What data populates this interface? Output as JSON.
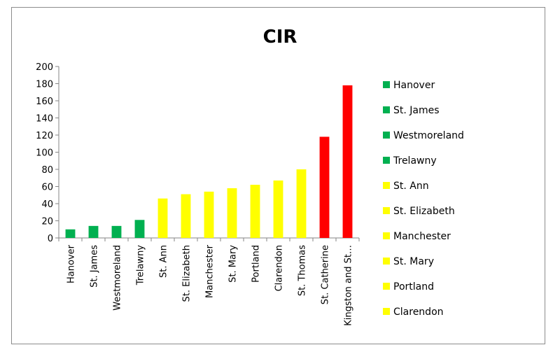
{
  "chart_data": {
    "type": "bar",
    "title": "CIR",
    "xlabel": "",
    "ylabel": "",
    "ylim": [
      0,
      200
    ],
    "yticks": [
      0,
      20,
      40,
      60,
      80,
      100,
      120,
      140,
      160,
      180,
      200
    ],
    "grid": false,
    "legend_position": "right",
    "categories": [
      "Hanover",
      "St. James",
      "Westmoreland",
      "Trelawny",
      "St. Ann",
      "St. Elizabeth",
      "Manchester",
      "St. Mary",
      "Portland",
      "Clarendon",
      "St. Thomas",
      "St. Catherine",
      "Kingston and St…"
    ],
    "values": [
      10,
      14,
      14,
      21,
      46,
      51,
      54,
      58,
      62,
      67,
      80,
      118,
      178
    ],
    "colors": [
      "#00b050",
      "#00b050",
      "#00b050",
      "#00b050",
      "#ffff00",
      "#ffff00",
      "#ffff00",
      "#ffff00",
      "#ffff00",
      "#ffff00",
      "#ffff00",
      "#ff0000",
      "#ff0000"
    ],
    "legend": [
      {
        "label": "Hanover",
        "color": "#00b050"
      },
      {
        "label": "St. James",
        "color": "#00b050"
      },
      {
        "label": "Westmoreland",
        "color": "#00b050"
      },
      {
        "label": "Trelawny",
        "color": "#00b050"
      },
      {
        "label": "St. Ann",
        "color": "#ffff00"
      },
      {
        "label": "St. Elizabeth",
        "color": "#ffff00"
      },
      {
        "label": "Manchester",
        "color": "#ffff00"
      },
      {
        "label": "St. Mary",
        "color": "#ffff00"
      },
      {
        "label": "Portland",
        "color": "#ffff00"
      },
      {
        "label": "Clarendon",
        "color": "#ffff00"
      }
    ]
  }
}
